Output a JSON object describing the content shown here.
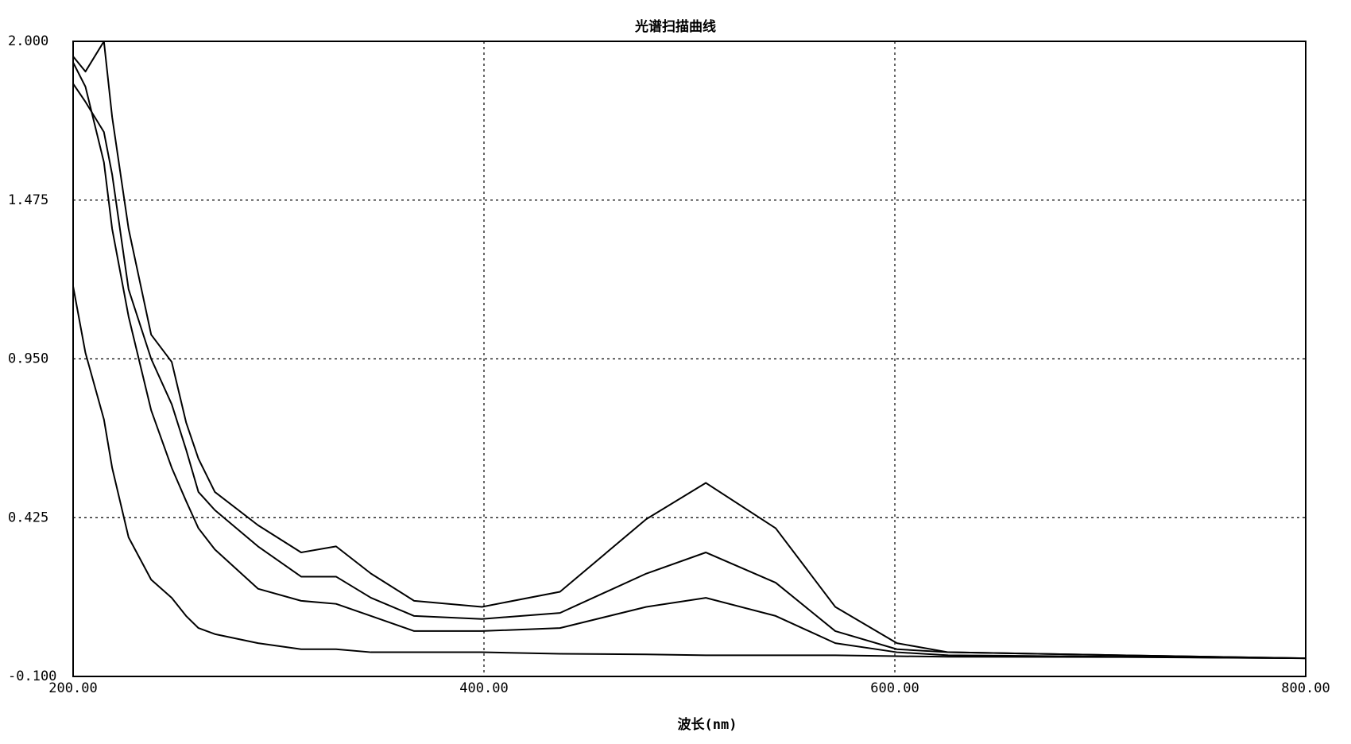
{
  "chart_data": {
    "type": "line",
    "title": "光谱扫描曲线",
    "x_label": "波长(nm)",
    "x": [
      200,
      206,
      215,
      219,
      227,
      238,
      248,
      255,
      261,
      269,
      290,
      311,
      328,
      345,
      366,
      399,
      437,
      479,
      508,
      542,
      571,
      601,
      626,
      710,
      800
    ],
    "series": [
      {
        "color": "#000000",
        "values": [
          1.95,
          1.9,
          2.0,
          1.75,
          1.38,
          1.03,
          0.94,
          0.74,
          0.62,
          0.51,
          0.4,
          0.31,
          0.33,
          0.24,
          0.15,
          0.13,
          0.18,
          0.42,
          0.54,
          0.39,
          0.13,
          0.01,
          -0.02,
          -0.03,
          -0.04
        ]
      },
      {
        "color": "#000000",
        "values": [
          1.86,
          1.8,
          1.7,
          1.56,
          1.18,
          0.95,
          0.8,
          0.65,
          0.51,
          0.45,
          0.33,
          0.23,
          0.23,
          0.16,
          0.1,
          0.09,
          0.11,
          0.24,
          0.31,
          0.21,
          0.05,
          -0.01,
          -0.02,
          -0.03,
          -0.04
        ]
      },
      {
        "color": "#000000",
        "values": [
          1.93,
          1.85,
          1.6,
          1.38,
          1.09,
          0.78,
          0.59,
          0.48,
          0.39,
          0.32,
          0.19,
          0.15,
          0.14,
          0.1,
          0.05,
          0.05,
          0.06,
          0.13,
          0.16,
          0.1,
          0.01,
          -0.02,
          -0.03,
          -0.035,
          -0.04
        ]
      },
      {
        "color": "#000000",
        "values": [
          1.19,
          0.97,
          0.75,
          0.59,
          0.36,
          0.22,
          0.16,
          0.1,
          0.06,
          0.04,
          0.01,
          -0.01,
          -0.01,
          -0.02,
          -0.02,
          -0.02,
          -0.025,
          -0.027,
          -0.03,
          -0.03,
          -0.03,
          -0.033,
          -0.035,
          -0.036,
          -0.04
        ]
      }
    ],
    "xlim": [
      200,
      800
    ],
    "xticks": [
      {
        "value": 200,
        "label": "200.00"
      },
      {
        "value": 400,
        "label": "400.00"
      },
      {
        "value": 600,
        "label": "600.00"
      },
      {
        "value": 800,
        "label": "800.00"
      }
    ],
    "ylim": [
      -0.1,
      2.0
    ],
    "yticks": [
      {
        "value": -0.1,
        "label": "-0.100"
      },
      {
        "value": 0.425,
        "label": "0.425"
      },
      {
        "value": 0.95,
        "label": "0.950"
      },
      {
        "value": 1.475,
        "label": "1.475"
      },
      {
        "value": 2.0,
        "label": "2.000"
      }
    ],
    "grid": true
  }
}
